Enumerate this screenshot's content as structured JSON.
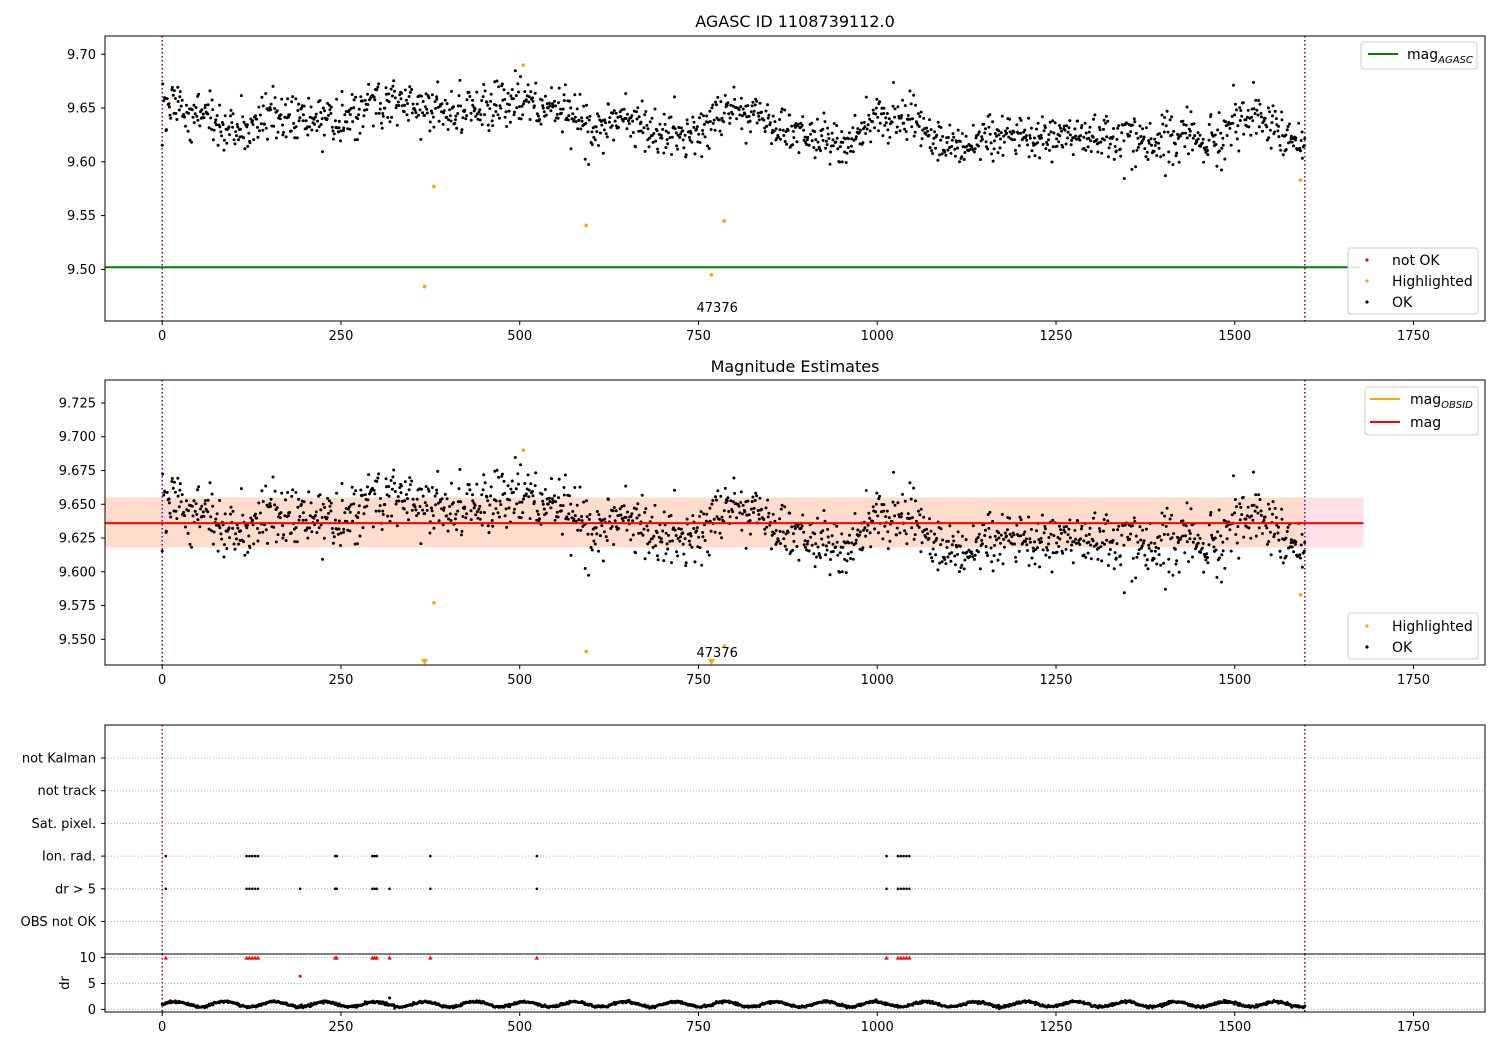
{
  "chart_data": [
    {
      "type": "scatter",
      "title": "AGASC ID 1108739112.0",
      "xlabel": "",
      "ylabel": "",
      "xlim": [
        -80,
        1850
      ],
      "ylim": [
        9.452,
        9.717
      ],
      "x_ticks": [
        "0",
        "250",
        "500",
        "750",
        "1000",
        "1250",
        "1500",
        "1750"
      ],
      "y_ticks": [
        "9.50",
        "9.55",
        "9.60",
        "9.65",
        "9.70"
      ],
      "grid": false,
      "vertical_lines": [
        0,
        1598
      ],
      "hline_mag_agasc": {
        "y": 9.502,
        "x_range": [
          -80,
          1680
        ],
        "color": "#008000"
      },
      "annotation": {
        "text": "47376",
        "x": 765,
        "y": 9.46
      },
      "highlighted_points": [
        {
          "x": 367,
          "y": 9.484
        },
        {
          "x": 380,
          "y": 9.577
        },
        {
          "x": 505,
          "y": 9.69
        },
        {
          "x": 593,
          "y": 9.541
        },
        {
          "x": 768,
          "y": 9.495
        },
        {
          "x": 786,
          "y": 9.545
        },
        {
          "x": 1592,
          "y": 9.583
        }
      ],
      "ok_series": {
        "x_range": [
          0,
          1598
        ],
        "n_points": 1560,
        "noise_sd": 0.014,
        "trend": [
          [
            0,
            9.65
          ],
          [
            60,
            9.645
          ],
          [
            100,
            9.63
          ],
          [
            150,
            9.64
          ],
          [
            200,
            9.64
          ],
          [
            260,
            9.64
          ],
          [
            300,
            9.66
          ],
          [
            350,
            9.655
          ],
          [
            400,
            9.645
          ],
          [
            450,
            9.648
          ],
          [
            500,
            9.66
          ],
          [
            560,
            9.65
          ],
          [
            600,
            9.63
          ],
          [
            650,
            9.64
          ],
          [
            700,
            9.625
          ],
          [
            760,
            9.63
          ],
          [
            800,
            9.65
          ],
          [
            850,
            9.635
          ],
          [
            900,
            9.625
          ],
          [
            960,
            9.615
          ],
          [
            1000,
            9.645
          ],
          [
            1050,
            9.64
          ],
          [
            1080,
            9.625
          ],
          [
            1110,
            9.615
          ],
          [
            1200,
            9.625
          ],
          [
            1300,
            9.62
          ],
          [
            1400,
            9.622
          ],
          [
            1480,
            9.62
          ],
          [
            1520,
            9.65
          ],
          [
            1560,
            9.63
          ],
          [
            1598,
            9.615
          ]
        ]
      },
      "legend_top": [
        {
          "label": "mag",
          "subscript": "AGASC",
          "color": "#008000",
          "marker": "line"
        }
      ],
      "legend_bottom": [
        {
          "label": "not OK",
          "color": "#ff0000",
          "marker": "dot"
        },
        {
          "label": "Highlighted",
          "color": "#ffa500",
          "marker": "dot"
        },
        {
          "label": "OK",
          "color": "#000000",
          "marker": "dot"
        }
      ]
    },
    {
      "type": "scatter",
      "title": "Magnitude Estimates",
      "xlabel": "",
      "ylabel": "",
      "xlim": [
        -80,
        1850
      ],
      "ylim": [
        9.531,
        9.742
      ],
      "x_ticks": [
        "0",
        "250",
        "500",
        "750",
        "1000",
        "1250",
        "1500",
        "1750"
      ],
      "y_ticks": [
        "9.550",
        "9.575",
        "9.600",
        "9.625",
        "9.650",
        "9.675",
        "9.700",
        "9.725"
      ],
      "grid": false,
      "vertical_lines": [
        0,
        1598
      ],
      "mag_line": {
        "y": 9.636,
        "x_range": [
          -80,
          1680
        ],
        "color": "#ff0000"
      },
      "band_outer": {
        "y0": 9.618,
        "y1": 9.655,
        "x_range": [
          -80,
          1680
        ],
        "color": "#ffe0e6"
      },
      "band_inner": {
        "y0": 9.618,
        "y1": 9.655,
        "x_range": [
          -80,
          1598
        ],
        "color": "#ffdccb"
      },
      "annotation": {
        "text": "47376",
        "x": 765,
        "y": 9.538
      },
      "down_markers": [
        {
          "x": 367
        },
        {
          "x": 768
        }
      ],
      "highlighted_points": [
        {
          "x": 380,
          "y": 9.577
        },
        {
          "x": 505,
          "y": 9.69
        },
        {
          "x": 593,
          "y": 9.541
        },
        {
          "x": 786,
          "y": 9.545
        },
        {
          "x": 1592,
          "y": 9.583
        }
      ],
      "legend_top": [
        {
          "label": "mag",
          "subscript": "OBSID",
          "color": "#ffa500",
          "marker": "line"
        },
        {
          "label": "mag",
          "subscript": "",
          "color": "#ff0000",
          "marker": "line"
        }
      ],
      "legend_bottom": [
        {
          "label": "Highlighted",
          "color": "#ffa500",
          "marker": "dot"
        },
        {
          "label": "OK",
          "color": "#000000",
          "marker": "dot"
        }
      ]
    },
    {
      "type": "scatter",
      "title": "",
      "xlabel": "",
      "ylabel": "",
      "xlim": [
        -80,
        1850
      ],
      "flag_rows": [
        "not Kalman",
        "not track",
        "Sat. pixel.",
        "Ion. rad.",
        "dr > 5",
        "OBS not OK"
      ],
      "ion_rad_x": [
        5,
        118,
        122,
        126,
        130,
        134,
        242,
        244,
        294,
        297,
        300,
        375,
        524,
        1013,
        1029,
        1033,
        1037,
        1041,
        1045
      ],
      "dr5_x": [
        5,
        118,
        122,
        126,
        130,
        134,
        193,
        242,
        244,
        294,
        297,
        300,
        318,
        375,
        524,
        1013,
        1029,
        1033,
        1037,
        1041,
        1045
      ]
    },
    {
      "type": "scatter",
      "title": "",
      "xlabel": "",
      "ylabel": "dr",
      "xlim": [
        -80,
        1850
      ],
      "ylim": [
        -0.5,
        10.7
      ],
      "x_ticks": [
        "0",
        "250",
        "500",
        "750",
        "1000",
        "1250",
        "1500",
        "1750"
      ],
      "y_ticks": [
        "0",
        "5",
        "10"
      ],
      "vertical_lines": [
        0,
        1598
      ],
      "capped_points_x": [
        5,
        118,
        122,
        126,
        130,
        134,
        242,
        244,
        294,
        297,
        300,
        318,
        375,
        524,
        1013,
        1029,
        1033,
        1037,
        1041,
        1045
      ],
      "capped_value": 10,
      "extra_points": [
        {
          "x": 193,
          "y": 6.4
        },
        {
          "x": 318,
          "y": 2.2
        }
      ],
      "dr_series": {
        "x_range": [
          0,
          1598
        ],
        "n_points": 1560,
        "base": 1.0,
        "amplitude": 0.5,
        "period": 70,
        "noise_sd": 0.12
      }
    }
  ]
}
